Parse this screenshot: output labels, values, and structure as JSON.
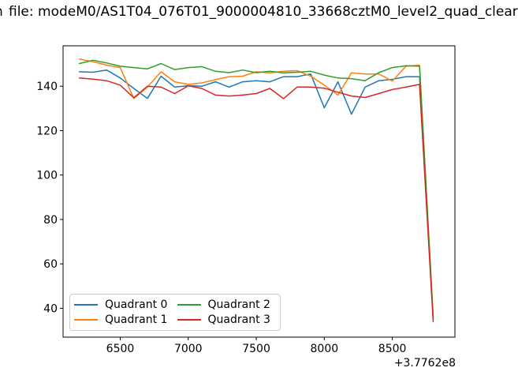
{
  "title": {
    "visible_text": "file: modeM0/AS1T04_076T01_9000004810_33668cztM0_level2_quad_clear",
    "clipped_left_fragment": "n"
  },
  "chart_data": {
    "type": "line",
    "title": "file: modeM0/AS1T04_076T01_9000004810_33668cztM0_level2_quad_clear",
    "xlabel": "",
    "ylabel": "",
    "grid": false,
    "x_axis": {
      "tick_labels": [
        "6500",
        "7000",
        "7500",
        "8000",
        "8500"
      ],
      "tick_values": [
        6500,
        7000,
        7500,
        8000,
        8500
      ],
      "offset_label": "+3.7762e8",
      "range": [
        6080,
        8960
      ]
    },
    "y_axis": {
      "tick_labels": [
        "40",
        "60",
        "80",
        "100",
        "120",
        "140"
      ],
      "tick_values": [
        40,
        60,
        80,
        100,
        120,
        140
      ],
      "range": [
        27,
        158.2
      ]
    },
    "x": [
      6200,
      6300,
      6400,
      6500,
      6600,
      6700,
      6800,
      6900,
      7000,
      7100,
      7200,
      7300,
      7400,
      7500,
      7600,
      7700,
      7800,
      7900,
      8000,
      8100,
      8200,
      8300,
      8400,
      8500,
      8600,
      8700,
      8800
    ],
    "series": [
      {
        "name": "Quadrant 0",
        "color": "#1f77b4",
        "values": [
          146.5,
          146.3,
          147.3,
          143.7,
          139.0,
          134.5,
          144.5,
          139.6,
          140.2,
          140.0,
          142.0,
          139.6,
          142.0,
          142.5,
          142.0,
          144.3,
          144.3,
          145.5,
          130.3,
          142.0,
          127.4,
          139.6,
          142.5,
          143.1,
          144.3,
          144.3,
          35.5
        ]
      },
      {
        "name": "Quadrant 1",
        "color": "#ff7f0e",
        "values": [
          152.2,
          151.0,
          149.5,
          148.4,
          134.5,
          139.6,
          146.5,
          142.0,
          140.8,
          141.5,
          143.0,
          144.3,
          144.5,
          146.5,
          146.0,
          146.7,
          147.0,
          144.5,
          140.5,
          136.0,
          146.0,
          145.5,
          145.5,
          142.3,
          149.0,
          149.5,
          36.5
        ]
      },
      {
        "name": "Quadrant 2",
        "color": "#2ca02c",
        "values": [
          150.2,
          151.7,
          150.5,
          149.0,
          148.4,
          147.8,
          150.2,
          147.5,
          148.4,
          148.8,
          146.7,
          146.1,
          147.3,
          146.1,
          146.7,
          146.0,
          146.3,
          146.7,
          145.0,
          143.7,
          143.4,
          142.5,
          146.1,
          148.4,
          149.2,
          149.0,
          36.0
        ]
      },
      {
        "name": "Quadrant 3",
        "color": "#d62728",
        "values": [
          143.7,
          143.2,
          142.5,
          140.5,
          134.8,
          140.0,
          139.6,
          136.7,
          140.2,
          139.0,
          136.0,
          135.6,
          136.0,
          136.7,
          139.0,
          134.4,
          139.6,
          139.6,
          139.1,
          137.3,
          135.6,
          134.9,
          136.7,
          138.5,
          139.6,
          140.8,
          34.0
        ]
      }
    ],
    "legend": {
      "position": "lower left",
      "ncol": 2,
      "entries": [
        "Quadrant 0",
        "Quadrant 1",
        "Quadrant 2",
        "Quadrant 3"
      ]
    }
  }
}
